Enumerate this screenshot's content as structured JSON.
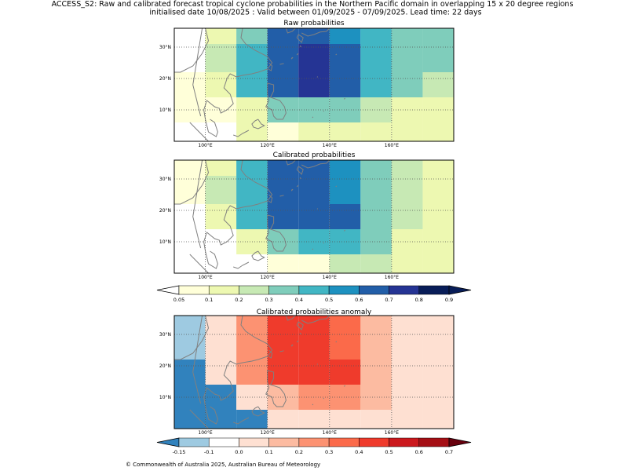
{
  "header": {
    "title": "ACCESS_S2: Raw and calibrated forecast tropical cyclone probabilities in the Northern Pacific domain in overlapping 15 x 20 degree regions",
    "subtitle": "initialised date 10/08/2025 :  Valid between 01/09/2025 - 07/09/2025. Lead time: 22 days"
  },
  "footer": {
    "copyright": "© Commonwealth of Australia 2025, Australian Bureau of Meteorology"
  },
  "chart_data": [
    {
      "type": "heatmap",
      "title": "Raw probabilities",
      "xlim": [
        90,
        180
      ],
      "ylim": [
        0,
        36
      ],
      "x_ticks": [
        100,
        120,
        140,
        160
      ],
      "x_tick_labels": [
        "100°E",
        "120°E",
        "140°E",
        "160°E"
      ],
      "y_ticks": [
        10,
        20,
        30
      ],
      "y_tick_labels": [
        "10°N",
        "20°N",
        "30°N"
      ],
      "grid": "dotted",
      "col_edges": [
        90,
        100,
        110,
        120,
        130,
        140,
        150,
        160,
        170,
        180
      ],
      "row_edges": [
        36,
        31,
        22,
        14,
        6,
        0
      ],
      "values": [
        [
          null,
          0.15,
          0.35,
          0.65,
          0.65,
          0.55,
          0.45,
          0.35,
          0.35
        ],
        [
          null,
          0.25,
          0.45,
          0.65,
          0.75,
          0.65,
          0.45,
          0.35,
          0.35
        ],
        [
          0.05,
          0.15,
          0.45,
          0.65,
          0.75,
          0.65,
          0.45,
          0.35,
          0.25
        ],
        [
          0.05,
          0.05,
          0.15,
          0.35,
          0.35,
          0.35,
          0.25,
          0.15,
          0.15
        ],
        [
          null,
          null,
          0.15,
          0.05,
          0.15,
          0.15,
          0.15,
          0.15,
          0.15
        ]
      ]
    },
    {
      "type": "heatmap",
      "title": "Calibrated probabilities",
      "xlim": [
        90,
        180
      ],
      "ylim": [
        0,
        36
      ],
      "x_ticks": [
        100,
        120,
        140,
        160
      ],
      "x_tick_labels": [
        "100°E",
        "120°E",
        "140°E",
        "160°E"
      ],
      "y_ticks": [
        10,
        20,
        30
      ],
      "y_tick_labels": [
        "10°N",
        "20°N",
        "30°N"
      ],
      "grid": "dotted",
      "col_edges": [
        90,
        100,
        110,
        120,
        130,
        140,
        150,
        160,
        170,
        180
      ],
      "row_edges": [
        36,
        31,
        22,
        14,
        6,
        0
      ],
      "values": [
        [
          0.05,
          0.15,
          0.45,
          0.65,
          0.65,
          0.55,
          0.35,
          0.25,
          0.15
        ],
        [
          0.05,
          0.25,
          0.45,
          0.65,
          0.65,
          0.55,
          0.35,
          0.25,
          0.15
        ],
        [
          null,
          0.15,
          0.45,
          0.65,
          0.65,
          0.65,
          0.35,
          0.25,
          0.15
        ],
        [
          null,
          null,
          0.15,
          0.35,
          0.45,
          0.45,
          0.35,
          0.15,
          0.15
        ],
        [
          null,
          null,
          null,
          0.05,
          0.05,
          0.25,
          0.25,
          0.15,
          0.15
        ]
      ]
    },
    {
      "type": "heatmap",
      "title": "Calibrated probabilities anomaly",
      "xlim": [
        90,
        180
      ],
      "ylim": [
        0,
        36
      ],
      "x_ticks": [
        100,
        120,
        140,
        160
      ],
      "x_tick_labels": [
        "100°E",
        "120°E",
        "140°E",
        "160°E"
      ],
      "y_ticks": [
        10,
        20,
        30
      ],
      "y_tick_labels": [
        "10°N",
        "20°N",
        "30°N"
      ],
      "grid": "dotted",
      "col_edges": [
        90,
        100,
        110,
        120,
        130,
        140,
        150,
        160,
        170,
        180
      ],
      "row_edges": [
        36,
        31,
        22,
        14,
        6,
        0
      ],
      "values": [
        [
          -0.125,
          0.0,
          0.25,
          0.45,
          0.45,
          0.35,
          0.15,
          0.05,
          0.0
        ],
        [
          -0.125,
          0.05,
          0.25,
          0.45,
          0.45,
          0.35,
          0.15,
          0.05,
          0.0
        ],
        [
          -0.2,
          0.0,
          0.25,
          0.45,
          0.45,
          0.45,
          0.15,
          0.05,
          0.0
        ],
        [
          -0.2,
          -0.2,
          0.0,
          0.15,
          0.25,
          0.25,
          0.15,
          0.0,
          0.0
        ],
        [
          -0.2,
          -0.2,
          -0.2,
          0.0,
          0.0,
          0.05,
          0.05,
          0.0,
          0.0
        ]
      ]
    }
  ],
  "colorbars": [
    {
      "name": "probability",
      "boundaries": [
        0.05,
        0.1,
        0.2,
        0.3,
        0.4,
        0.5,
        0.6,
        0.7,
        0.8,
        0.9
      ],
      "labels": [
        "0.05",
        "0.1",
        "0.2",
        "0.3",
        "0.4",
        "0.5",
        "0.6",
        "0.7",
        "0.8",
        "0.9"
      ],
      "under_color": "#ffffff",
      "colors": [
        "#ffffd9",
        "#edf8b1",
        "#c7e9b4",
        "#7fcdbb",
        "#41b6c4",
        "#1d91c0",
        "#225ea8",
        "#253494",
        "#081d58"
      ],
      "over_color": "#081d58"
    },
    {
      "name": "anomaly",
      "boundaries": [
        -0.15,
        -0.1,
        0.0,
        0.1,
        0.2,
        0.3,
        0.4,
        0.5,
        0.6,
        0.7
      ],
      "labels": [
        "-0.15",
        "-0.1",
        "0.0",
        "0.1",
        "0.2",
        "0.3",
        "0.4",
        "0.5",
        "0.6",
        "0.7"
      ],
      "under_color": "#3182bd",
      "colors": [
        "#9ecae1",
        "#ffffff",
        "#fee0d2",
        "#fcbba1",
        "#fc9272",
        "#fb6a4a",
        "#ef3b2c",
        "#cb181d",
        "#a50f15"
      ],
      "over_color": "#67000d"
    }
  ],
  "colors": {
    "coastline": "#808080",
    "grid": "#555555",
    "frame": "#000000"
  }
}
